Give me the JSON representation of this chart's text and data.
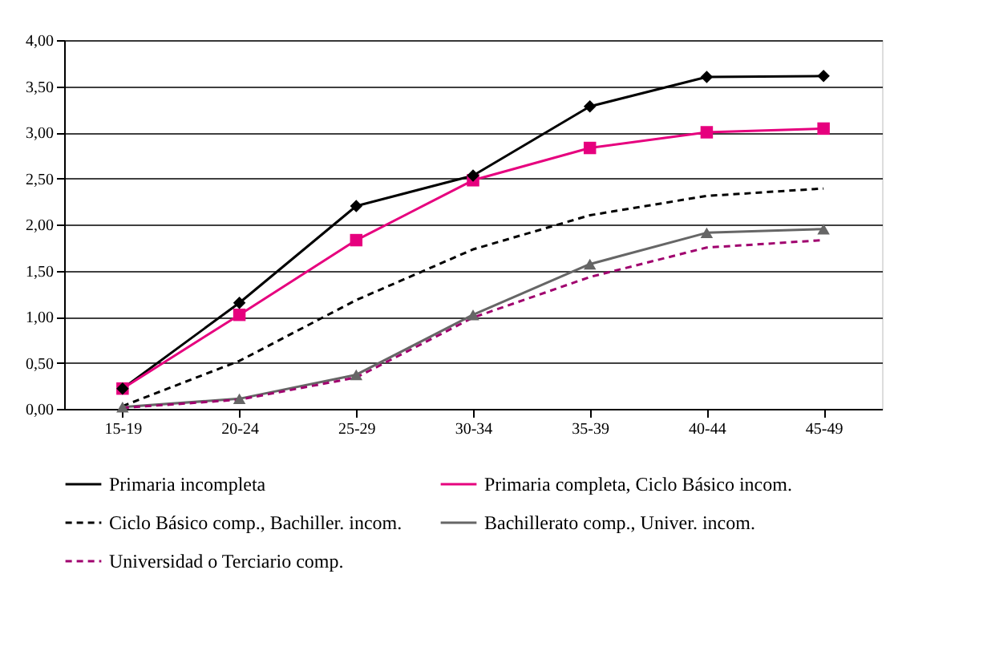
{
  "chart_data": {
    "type": "line",
    "categories": [
      "15-19",
      "20-24",
      "25-29",
      "30-34",
      "35-39",
      "40-44",
      "45-49"
    ],
    "series": [
      {
        "name": "Primaria incompleta",
        "color": "#000000",
        "marker": "diamond",
        "line_style": "solid",
        "values": [
          0.22,
          1.15,
          2.2,
          2.53,
          3.28,
          3.6,
          3.61
        ]
      },
      {
        "name": "Primaria completa, Ciclo Básico incom.",
        "color": "#e6007e",
        "marker": "square",
        "line_style": "solid",
        "values": [
          0.22,
          1.02,
          1.83,
          2.48,
          2.83,
          3.0,
          3.04
        ]
      },
      {
        "name": "Ciclo Básico comp., Bachiller. incom.",
        "color": "#000000",
        "marker": "none",
        "line_style": "dashed",
        "values": [
          0.03,
          0.52,
          1.18,
          1.73,
          2.1,
          2.31,
          2.39
        ]
      },
      {
        "name": "Bachillerato comp., Univer. incom.",
        "color": "#666666",
        "marker": "triangle",
        "line_style": "solid",
        "values": [
          0.02,
          0.11,
          0.37,
          1.02,
          1.57,
          1.91,
          1.95
        ]
      },
      {
        "name": "Universidad o Terciario comp.",
        "color": "#a0006e",
        "marker": "none",
        "line_style": "dashed",
        "values": [
          0.01,
          0.1,
          0.34,
          0.99,
          1.43,
          1.75,
          1.83
        ]
      }
    ],
    "ylim": [
      0,
      4
    ],
    "yticks": [
      {
        "value": 0,
        "label": "0,00"
      },
      {
        "value": 0.5,
        "label": "0,50"
      },
      {
        "value": 1,
        "label": "1,00"
      },
      {
        "value": 1.5,
        "label": "1,50"
      },
      {
        "value": 2,
        "label": "2,00"
      },
      {
        "value": 2.5,
        "label": "2,50"
      },
      {
        "value": 3,
        "label": "3,00"
      },
      {
        "value": 3.5,
        "label": "3,50"
      },
      {
        "value": 4,
        "label": "4,00"
      }
    ],
    "grid": "y",
    "legend": "bottom"
  }
}
